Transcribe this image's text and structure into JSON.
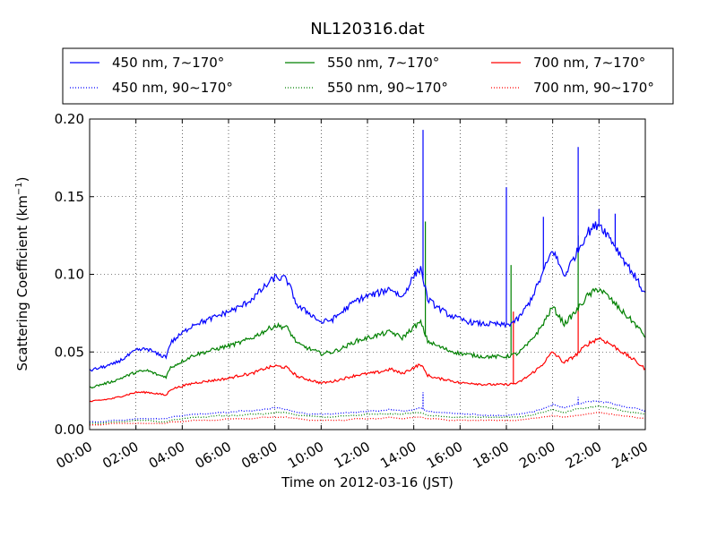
{
  "chart_data": {
    "type": "line",
    "title": "NL120316.dat",
    "xlabel": "Time on 2012-03-16 (JST)",
    "ylabel": "Scattering Coefficient (km",
    "ylabel_sup": "−1",
    "ylabel_tail": ")",
    "xlim": [
      0,
      24
    ],
    "ylim": [
      0,
      0.2
    ],
    "grid": true,
    "legend_position": "top, above plot, 3 columns",
    "x_ticks": [
      0,
      2,
      4,
      6,
      8,
      10,
      12,
      14,
      16,
      18,
      20,
      22,
      24
    ],
    "x_tick_labels": [
      "00:00",
      "02:00",
      "04:00",
      "06:00",
      "08:00",
      "10:00",
      "12:00",
      "14:00",
      "16:00",
      "18:00",
      "20:00",
      "22:00",
      "24:00"
    ],
    "y_ticks": [
      0,
      0.05,
      0.1,
      0.15,
      0.2
    ],
    "y_tick_labels": [
      "0.00",
      "0.05",
      "0.10",
      "0.15",
      "0.20"
    ],
    "x_hours": [
      0,
      0.5,
      1,
      1.5,
      2,
      2.5,
      3,
      3.3,
      3.5,
      4,
      4.5,
      5,
      5.5,
      6,
      6.5,
      7,
      7.5,
      8,
      8.5,
      9,
      9.5,
      10,
      10.5,
      11,
      11.5,
      12,
      12.5,
      13,
      13.5,
      14,
      14.3,
      14.6,
      15,
      15.5,
      16,
      16.5,
      17,
      17.5,
      18,
      18.5,
      19,
      19.5,
      20,
      20.5,
      21,
      21.5,
      22,
      22.5,
      23,
      23.5,
      24
    ],
    "series": [
      {
        "name": "450 nm, 7∼170°",
        "color": "#0000ff",
        "dash": "solid",
        "values": [
          0.038,
          0.04,
          0.042,
          0.046,
          0.051,
          0.052,
          0.048,
          0.047,
          0.056,
          0.062,
          0.068,
          0.07,
          0.073,
          0.076,
          0.079,
          0.084,
          0.091,
          0.098,
          0.097,
          0.079,
          0.075,
          0.069,
          0.071,
          0.077,
          0.083,
          0.086,
          0.088,
          0.091,
          0.085,
          0.099,
          0.104,
          0.084,
          0.079,
          0.074,
          0.071,
          0.069,
          0.068,
          0.068,
          0.067,
          0.071,
          0.082,
          0.098,
          0.116,
          0.099,
          0.113,
          0.127,
          0.133,
          0.123,
          0.111,
          0.1,
          0.087
        ],
        "spikes": [
          [
            14.4,
            0.193
          ],
          [
            18.0,
            0.156
          ],
          [
            19.6,
            0.137
          ],
          [
            21.1,
            0.182
          ],
          [
            22.0,
            0.142
          ],
          [
            22.7,
            0.139
          ]
        ]
      },
      {
        "name": "550 nm, 7∼170°",
        "color": "#008000",
        "dash": "solid",
        "values": [
          0.027,
          0.029,
          0.031,
          0.034,
          0.037,
          0.038,
          0.035,
          0.034,
          0.04,
          0.044,
          0.048,
          0.05,
          0.052,
          0.054,
          0.056,
          0.059,
          0.063,
          0.067,
          0.066,
          0.055,
          0.052,
          0.049,
          0.05,
          0.053,
          0.057,
          0.059,
          0.061,
          0.063,
          0.059,
          0.066,
          0.069,
          0.057,
          0.054,
          0.051,
          0.049,
          0.048,
          0.047,
          0.047,
          0.047,
          0.049,
          0.056,
          0.066,
          0.079,
          0.068,
          0.076,
          0.086,
          0.091,
          0.084,
          0.076,
          0.069,
          0.06
        ],
        "spikes": [
          [
            14.5,
            0.134
          ],
          [
            18.2,
            0.106
          ],
          [
            21.1,
            0.125
          ]
        ]
      },
      {
        "name": "700 nm, 7∼170°",
        "color": "#ff0000",
        "dash": "solid",
        "values": [
          0.018,
          0.019,
          0.02,
          0.022,
          0.024,
          0.024,
          0.023,
          0.022,
          0.026,
          0.028,
          0.03,
          0.031,
          0.032,
          0.033,
          0.035,
          0.036,
          0.039,
          0.041,
          0.04,
          0.034,
          0.032,
          0.03,
          0.031,
          0.033,
          0.035,
          0.036,
          0.037,
          0.039,
          0.036,
          0.04,
          0.042,
          0.035,
          0.033,
          0.032,
          0.03,
          0.03,
          0.029,
          0.029,
          0.029,
          0.03,
          0.035,
          0.041,
          0.05,
          0.043,
          0.048,
          0.055,
          0.059,
          0.055,
          0.05,
          0.045,
          0.039
        ],
        "spikes": [
          [
            18.3,
            0.076
          ],
          [
            21.1,
            0.079
          ]
        ]
      },
      {
        "name": "450 nm, 90∼170°",
        "color": "#0000ff",
        "dash": "dotted",
        "values": [
          0.005,
          0.005,
          0.006,
          0.006,
          0.007,
          0.007,
          0.007,
          0.007,
          0.008,
          0.009,
          0.01,
          0.01,
          0.011,
          0.011,
          0.012,
          0.012,
          0.013,
          0.014,
          0.013,
          0.011,
          0.01,
          0.01,
          0.01,
          0.011,
          0.011,
          0.012,
          0.012,
          0.013,
          0.012,
          0.013,
          0.014,
          0.012,
          0.011,
          0.011,
          0.01,
          0.01,
          0.009,
          0.009,
          0.009,
          0.01,
          0.011,
          0.013,
          0.016,
          0.014,
          0.016,
          0.018,
          0.018,
          0.017,
          0.015,
          0.014,
          0.012
        ],
        "spikes": [
          [
            14.4,
            0.024
          ],
          [
            21.1,
            0.021
          ]
        ]
      },
      {
        "name": "550 nm, 90∼170°",
        "color": "#008000",
        "dash": "dotted",
        "values": [
          0.004,
          0.004,
          0.005,
          0.005,
          0.006,
          0.006,
          0.005,
          0.005,
          0.006,
          0.007,
          0.008,
          0.008,
          0.009,
          0.009,
          0.009,
          0.01,
          0.01,
          0.011,
          0.011,
          0.009,
          0.009,
          0.008,
          0.008,
          0.009,
          0.009,
          0.01,
          0.01,
          0.01,
          0.01,
          0.011,
          0.011,
          0.009,
          0.009,
          0.008,
          0.008,
          0.008,
          0.008,
          0.008,
          0.008,
          0.008,
          0.009,
          0.011,
          0.013,
          0.011,
          0.013,
          0.014,
          0.015,
          0.014,
          0.012,
          0.011,
          0.01
        ],
        "spikes": []
      },
      {
        "name": "700 nm, 90∼170°",
        "color": "#ff0000",
        "dash": "dotted",
        "values": [
          0.003,
          0.003,
          0.004,
          0.004,
          0.004,
          0.004,
          0.004,
          0.004,
          0.005,
          0.005,
          0.006,
          0.006,
          0.006,
          0.007,
          0.007,
          0.007,
          0.008,
          0.008,
          0.008,
          0.007,
          0.006,
          0.006,
          0.006,
          0.006,
          0.007,
          0.007,
          0.007,
          0.008,
          0.007,
          0.008,
          0.008,
          0.007,
          0.007,
          0.006,
          0.006,
          0.006,
          0.006,
          0.006,
          0.006,
          0.006,
          0.007,
          0.008,
          0.009,
          0.008,
          0.009,
          0.01,
          0.011,
          0.01,
          0.009,
          0.008,
          0.007
        ],
        "spikes": []
      }
    ]
  }
}
